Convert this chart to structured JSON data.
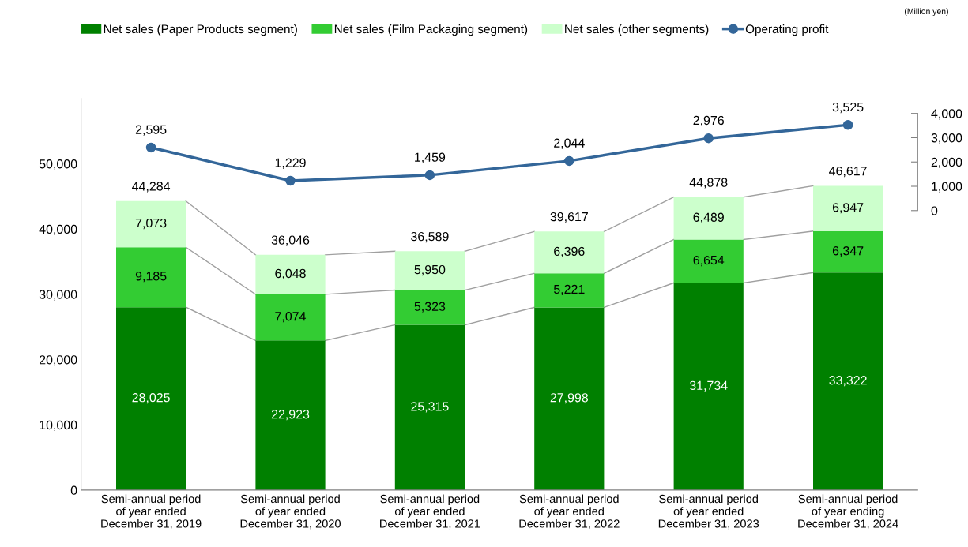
{
  "chart_data": {
    "type": "bar",
    "stacked": true,
    "categories": [
      "Semi-annual period\nof year ended\nDecember 31, 2019",
      "Semi-annual period\nof year ended\nDecember 31, 2020",
      "Semi-annual period\nof year ended\nDecember 31, 2021",
      "Semi-annual period\nof year ended\nDecember 31, 2022",
      "Semi-annual period\nof year ended\nDecember 31, 2023",
      "Semi-annual period\nof year ending\nDecember 31, 2024"
    ],
    "series": [
      {
        "name": "Net sales (Paper Products segment)",
        "color": "#008000",
        "values": [
          28025,
          22923,
          25315,
          27998,
          31734,
          33322
        ],
        "value_labels": [
          "28,025",
          "22,923",
          "25,315",
          "27,998",
          "31,734",
          "33,322"
        ]
      },
      {
        "name": "Net sales (Film Packaging segment)",
        "color": "#33cc33",
        "values": [
          9185,
          7074,
          5323,
          5221,
          6654,
          6347
        ],
        "value_labels": [
          "9,185",
          "7,074",
          "5,323",
          "5,221",
          "6,654",
          "6,347"
        ]
      },
      {
        "name": "Net sales (other segments)",
        "color": "#ccffcc",
        "values": [
          7073,
          6048,
          5950,
          6396,
          6489,
          6947
        ],
        "value_labels": [
          "7,073",
          "6,048",
          "5,950",
          "6,396",
          "6,489",
          "6,947"
        ]
      },
      {
        "name": "Operating profit",
        "type": "line",
        "axis": "y2",
        "color": "#336699",
        "marker": "circle",
        "values": [
          2595,
          1229,
          1459,
          2044,
          2976,
          3525
        ],
        "value_labels": [
          "2,595",
          "1,229",
          "1,459",
          "2,044",
          "2,976",
          "3,525"
        ]
      }
    ],
    "totals": [
      "44,284",
      "36,046",
      "36,589",
      "39,617",
      "44,878",
      "46,617"
    ],
    "ylim": [
      0,
      60000
    ],
    "yticks": [
      {
        "value": 0,
        "label": "0"
      },
      {
        "value": 10000,
        "label": "10,000"
      },
      {
        "value": 20000,
        "label": "20,000"
      },
      {
        "value": 30000,
        "label": "30,000"
      },
      {
        "value": 40000,
        "label": "40,000"
      },
      {
        "value": 50000,
        "label": "50,000"
      }
    ],
    "y2lim": [
      -11505,
      4615
    ],
    "y2ticks": [
      {
        "value": 0,
        "label": "0"
      },
      {
        "value": 1000,
        "label": "1,000"
      },
      {
        "value": 2000,
        "label": "2,000"
      },
      {
        "value": 3000,
        "label": "3,000"
      },
      {
        "value": 4000,
        "label": "4,000"
      }
    ],
    "legend": "top",
    "grid": false,
    "annotations": [
      "(Million yen)"
    ]
  }
}
